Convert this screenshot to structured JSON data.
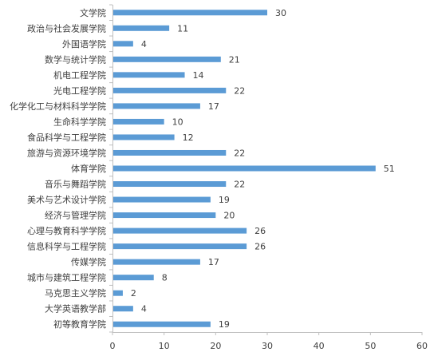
{
  "chart_data": {
    "type": "bar",
    "orientation": "horizontal",
    "categories": [
      "文学院",
      "政治与社会发展学院",
      "外国语学院",
      "数学与统计学院",
      "机电工程学院",
      "光电工程学院",
      "化学化工与材料科学学院",
      "生命科学学院",
      "食品科学与工程学院",
      "旅游与资源环境学院",
      "体育学院",
      "音乐与舞蹈学院",
      "美术与艺术设计学院",
      "经济与管理学院",
      "心理与教育科学学院",
      "信息科学与工程学院",
      "传媒学院",
      "城市与建筑工程学院",
      "马克思主义学院",
      "大学英语教学部",
      "初等教育学院"
    ],
    "values": [
      30,
      11,
      4,
      21,
      14,
      22,
      17,
      10,
      12,
      22,
      51,
      22,
      19,
      20,
      26,
      26,
      17,
      8,
      2,
      4,
      19
    ],
    "xlim": [
      0,
      60
    ],
    "xticks": [
      0,
      10,
      20,
      30,
      40,
      50,
      60
    ],
    "data_labels": true,
    "grid": false,
    "legend": "none",
    "bar_color": "#5B9BD5",
    "axis_color": "#BFBFBF",
    "text_color": "#404040"
  }
}
